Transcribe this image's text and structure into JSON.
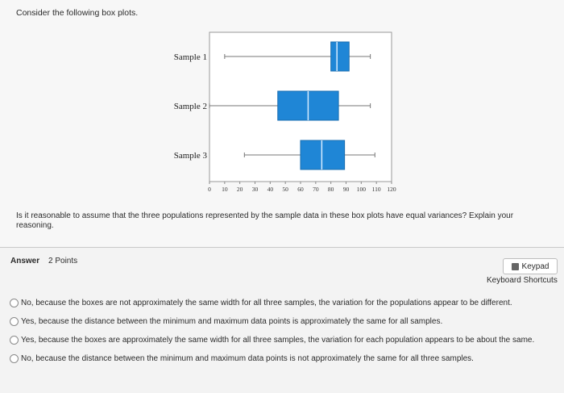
{
  "prompt_text": "Consider the following box plots.",
  "chart_data": {
    "type": "box",
    "categories": [
      "Sample 1",
      "Sample 2",
      "Sample 3"
    ],
    "series": [
      {
        "name": "Sample 1",
        "min": 10,
        "q1": 80,
        "median": 84,
        "q3": 92,
        "max": 106
      },
      {
        "name": "Sample 2",
        "min": 0,
        "q1": 45,
        "median": 65,
        "q3": 85,
        "max": 106
      },
      {
        "name": "Sample 3",
        "min": 23,
        "q1": 60,
        "median": 74,
        "q3": 89,
        "max": 109
      }
    ],
    "xticks": [
      "0",
      "10",
      "20",
      "30",
      "40",
      "50",
      "60",
      "70",
      "80",
      "90",
      "100",
      "110",
      "120"
    ],
    "xlim": [
      0,
      120
    ],
    "box_color": "#1f86d6"
  },
  "question": "Is it reasonable to assume that the three populations represented by the sample data in these box plots have equal variances? Explain your reasoning.",
  "answer_label": "Answer",
  "points": "2 Points",
  "keypad_label": "Keypad",
  "keyboard_shortcuts": "Keyboard Shortcuts",
  "options": [
    "No, because the boxes are not approximately the same width for all three samples, the variation for the populations appear to be different.",
    "Yes, because the distance between the minimum and maximum data points is approximately the same for all samples.",
    "Yes, because the boxes are approximately the same width for all three samples, the variation for each population appears to be about the same.",
    "No, because the distance between the minimum and maximum data points is not approximately the same for all three samples."
  ]
}
